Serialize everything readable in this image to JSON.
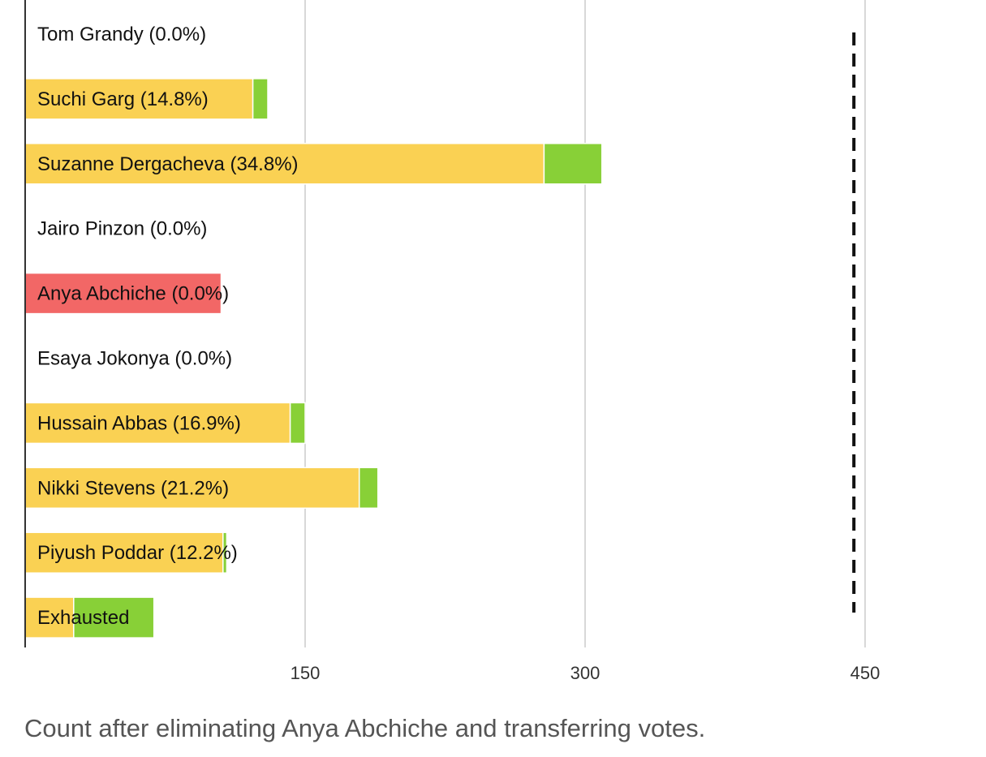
{
  "chart_data": {
    "type": "bar",
    "orientation": "horizontal",
    "stacked": true,
    "categories": [
      "Tom Grandy (0.0%)",
      "Suchi Garg (14.8%)",
      "Suzanne Dergacheva (34.8%)",
      "Jairo Pinzon (0.0%)",
      "Anya Abchiche (0.0%)",
      "Esaya Jokonya (0.0%)",
      "Hussain Abbas (16.9%)",
      "Nikki Stevens (21.2%)",
      "Piyush Poddar (12.2%)",
      "Exhausted"
    ],
    "series": [
      {
        "values": [
          0,
          122,
          278,
          0,
          0,
          0,
          142,
          179,
          106,
          26
        ]
      },
      {
        "values": [
          0,
          8,
          31,
          0,
          0,
          0,
          8,
          10,
          2,
          43
        ]
      },
      {
        "values": [
          0,
          0,
          0,
          0,
          105,
          0,
          0,
          0,
          0,
          0
        ]
      }
    ],
    "colors": [
      "#fad153",
      "#88d037",
      "#f26766"
    ],
    "xlim": [
      0,
      520
    ],
    "xticks": [
      150,
      300,
      450
    ],
    "threshold": 444,
    "grid": true
  },
  "caption": "Count after eliminating Anya Abchiche and transferring votes."
}
